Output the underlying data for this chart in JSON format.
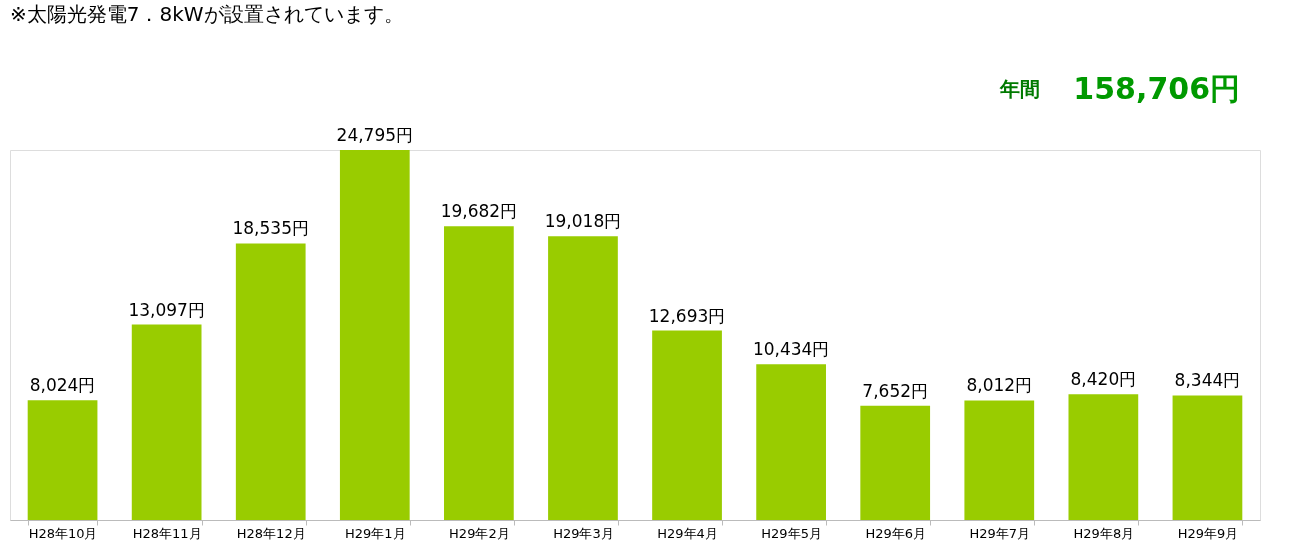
{
  "chart_data": {
    "type": "bar",
    "title": "※太陽光発電7．8kWが設置されています。",
    "categories": [
      "H28年10月",
      "H28年11月",
      "H28年12月",
      "H29年1月",
      "H29年2月",
      "H29年3月",
      "H29年4月",
      "H29年5月",
      "H29年6月",
      "H29年7月",
      "H29年8月",
      "H29年9月"
    ],
    "values": [
      8024,
      13097,
      18535,
      24795,
      19682,
      19018,
      12693,
      10434,
      7652,
      8012,
      8420,
      8344
    ],
    "value_labels": [
      "8,024円",
      "13,097円",
      "18,535円",
      "24,795円",
      "19,682円",
      "19,018円",
      "12,693円",
      "10,434円",
      "7,652円",
      "8,012円",
      "8,420円",
      "8,344円"
    ],
    "color": "#99cc00",
    "grid": false,
    "annotations": [
      "年間",
      "158,706円"
    ]
  }
}
